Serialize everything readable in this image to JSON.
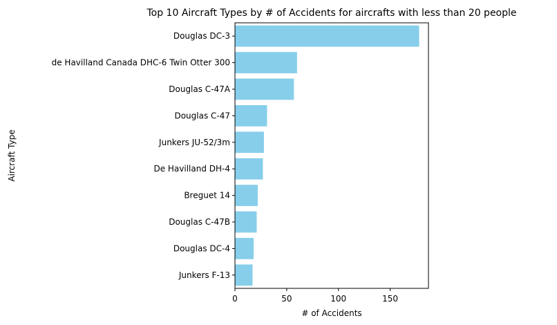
{
  "chart_data": {
    "type": "bar",
    "orientation": "horizontal",
    "title": "Top 10 Aircraft Types by # of Accidents for aircrafts with less than 20 people",
    "xlabel": "# of Accidents",
    "ylabel": "Aircraft Type",
    "categories": [
      "Douglas DC-3",
      "de Havilland Canada DHC-6 Twin Otter 300",
      "Douglas C-47A",
      "Douglas C-47",
      "Junkers JU-52/3m",
      "De Havilland DH-4",
      "Breguet 14",
      "Douglas C-47B",
      "Douglas DC-4",
      "Junkers F-13"
    ],
    "values": [
      178,
      60,
      57,
      31,
      28,
      27,
      22,
      21,
      18,
      17
    ],
    "xlim": [
      0,
      187
    ],
    "xticks": [
      0,
      50,
      100,
      150
    ],
    "grid": false,
    "legend": "none",
    "bar_color": "#87ceeb"
  }
}
